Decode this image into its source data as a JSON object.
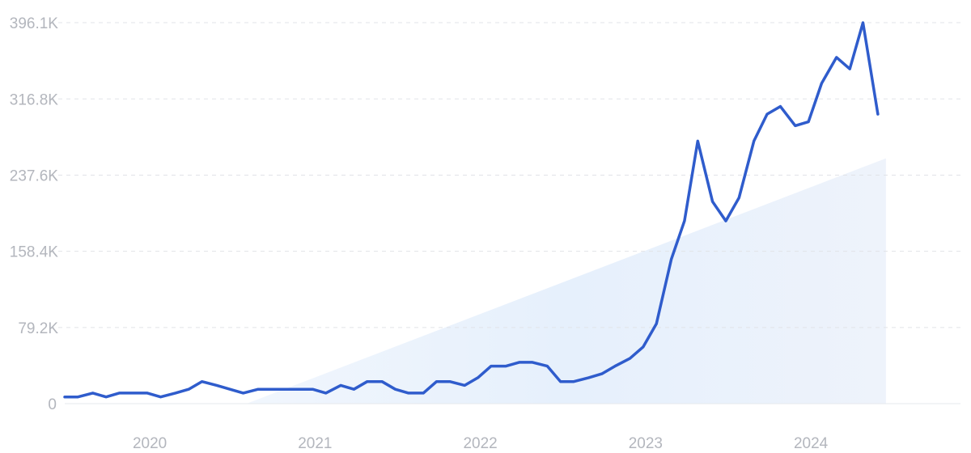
{
  "chart_data": {
    "type": "line",
    "title": "",
    "xlabel": "",
    "ylabel": "",
    "y_ticks": [
      "0",
      "79.2K",
      "158.4K",
      "237.6K",
      "316.8K",
      "396.1K"
    ],
    "y_tick_values": [
      0,
      79200,
      158400,
      237600,
      316800,
      396100
    ],
    "ylim": [
      0,
      396100
    ],
    "x_ticks": [
      "2020",
      "2021",
      "2022",
      "2023",
      "2024"
    ],
    "x_tick_values": [
      2020.0,
      2021.0,
      2022.0,
      2023.0,
      2024.0
    ],
    "xlim": [
      2019.5,
      2024.92
    ],
    "grid": true,
    "series": [
      {
        "values": [
          [
            2019.5,
            7000
          ],
          [
            2019.58,
            7000
          ],
          [
            2019.67,
            11000
          ],
          [
            2019.75,
            7000
          ],
          [
            2019.83,
            11000
          ],
          [
            2019.92,
            11000
          ],
          [
            2020.0,
            11000
          ],
          [
            2020.08,
            7000
          ],
          [
            2020.17,
            11000
          ],
          [
            2020.25,
            15000
          ],
          [
            2020.33,
            23000
          ],
          [
            2020.42,
            19000
          ],
          [
            2020.5,
            15000
          ],
          [
            2020.58,
            11000
          ],
          [
            2020.67,
            15000
          ],
          [
            2020.75,
            15000
          ],
          [
            2020.83,
            15000
          ],
          [
            2020.92,
            15000
          ],
          [
            2021.0,
            15000
          ],
          [
            2021.08,
            11000
          ],
          [
            2021.17,
            19000
          ],
          [
            2021.25,
            15000
          ],
          [
            2021.33,
            23000
          ],
          [
            2021.42,
            23000
          ],
          [
            2021.5,
            15000
          ],
          [
            2021.58,
            11000
          ],
          [
            2021.67,
            11000
          ],
          [
            2021.75,
            23000
          ],
          [
            2021.83,
            23000
          ],
          [
            2021.92,
            19000
          ],
          [
            2022.0,
            27000
          ],
          [
            2022.08,
            39000
          ],
          [
            2022.17,
            39000
          ],
          [
            2022.25,
            43000
          ],
          [
            2022.33,
            43000
          ],
          [
            2022.42,
            39000
          ],
          [
            2022.5,
            23000
          ],
          [
            2022.58,
            23000
          ],
          [
            2022.67,
            27000
          ],
          [
            2022.75,
            31000
          ],
          [
            2022.83,
            39000
          ],
          [
            2022.92,
            47000
          ],
          [
            2023.0,
            59000
          ],
          [
            2023.08,
            83000
          ],
          [
            2023.17,
            150000
          ],
          [
            2023.25,
            190000
          ],
          [
            2023.33,
            273000
          ],
          [
            2023.42,
            210000
          ],
          [
            2023.5,
            190000
          ],
          [
            2023.58,
            214000
          ],
          [
            2023.67,
            273000
          ],
          [
            2023.75,
            301000
          ],
          [
            2023.83,
            309000
          ],
          [
            2023.92,
            289000
          ],
          [
            2024.0,
            293000
          ],
          [
            2024.08,
            333000
          ],
          [
            2024.17,
            360000
          ],
          [
            2024.25,
            348000
          ],
          [
            2024.33,
            396000
          ],
          [
            2024.42,
            301000
          ]
        ],
        "color": "#2f5ccc"
      }
    ],
    "trend_area": {
      "from": [
        2020.6,
        0
      ],
      "to": [
        2024.42,
        255000
      ],
      "color": "#e9f2fd"
    }
  }
}
